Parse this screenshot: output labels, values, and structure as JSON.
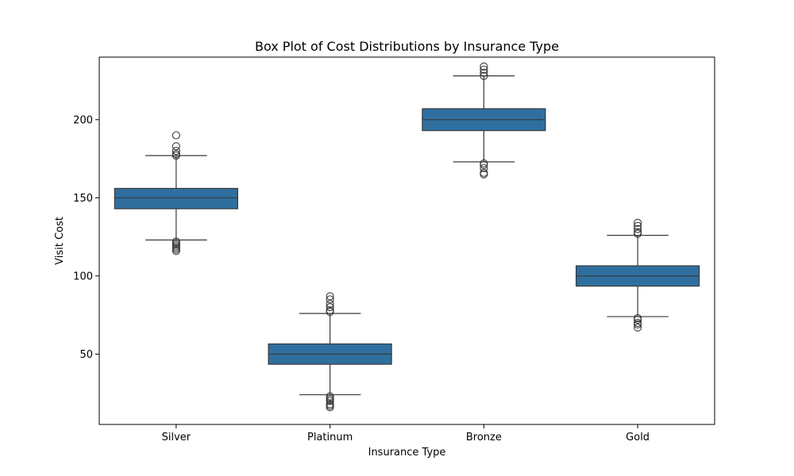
{
  "chart_data": {
    "type": "box",
    "title": "Box Plot of Cost Distributions by Insurance Type",
    "xlabel": "Insurance Type",
    "ylabel": "Visit Cost",
    "categories": [
      "Silver",
      "Platinum",
      "Bronze",
      "Gold"
    ],
    "ylim": [
      5,
      240
    ],
    "yticks": [
      50,
      100,
      150,
      200
    ],
    "box_color": "#2f6f9f",
    "line_color": "#3a3a3a",
    "boxes": [
      {
        "category": "Silver",
        "whisker_low": 123,
        "q1": 143,
        "median": 150,
        "q3": 156,
        "whisker_high": 177,
        "outliers": [
          116,
          117,
          118,
          119,
          120,
          121,
          122,
          177,
          178,
          180,
          183,
          190
        ]
      },
      {
        "category": "Platinum",
        "whisker_low": 24,
        "q1": 43.5,
        "median": 50,
        "q3": 56.5,
        "whisker_high": 76,
        "outliers": [
          16,
          17,
          18,
          20,
          21,
          22,
          23,
          77,
          78,
          80,
          82,
          85,
          87
        ]
      },
      {
        "category": "Bronze",
        "whisker_low": 173,
        "q1": 193,
        "median": 200,
        "q3": 207,
        "whisker_high": 228,
        "outliers": [
          165,
          166,
          169,
          171,
          172,
          228,
          230,
          232,
          234
        ]
      },
      {
        "category": "Gold",
        "whisker_low": 74,
        "q1": 93.5,
        "median": 100,
        "q3": 106.5,
        "whisker_high": 126,
        "outliers": [
          67,
          69,
          70,
          72,
          73,
          127,
          128,
          130,
          132,
          134
        ]
      }
    ]
  }
}
